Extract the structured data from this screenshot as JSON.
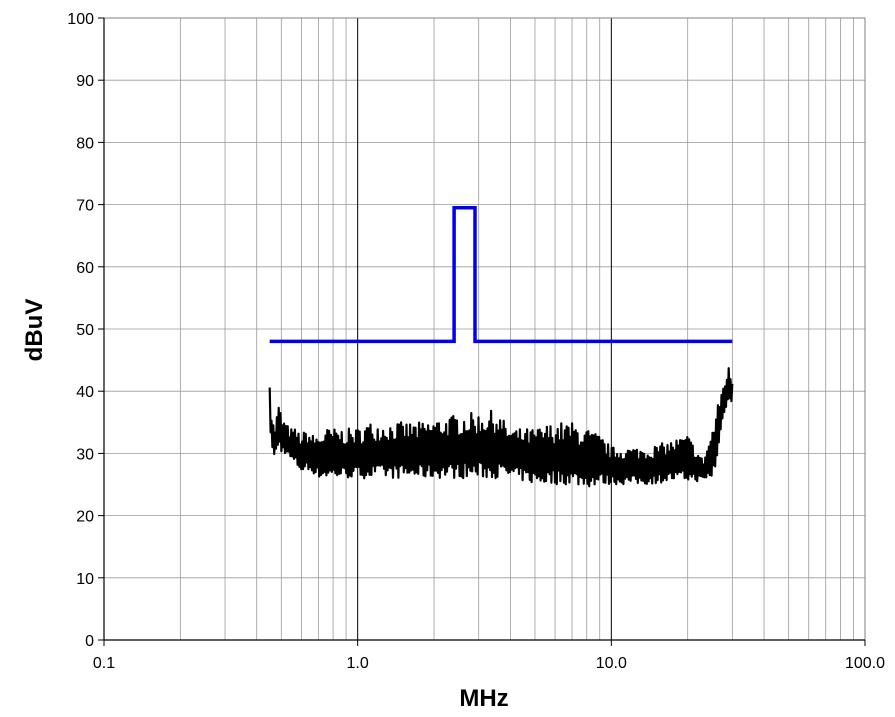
{
  "chart_data": {
    "type": "line",
    "title": "",
    "xlabel": "MHz",
    "ylabel": "dBuV",
    "xscale": "log",
    "xlim": [
      0.1,
      100
    ],
    "ylim": [
      0,
      100
    ],
    "x_ticks": [
      0.1,
      1,
      10,
      100
    ],
    "x_tick_labels": [
      "0.1",
      "1.0",
      "10.0",
      "100.0"
    ],
    "y_ticks": [
      0,
      10,
      20,
      30,
      40,
      50,
      60,
      70,
      80,
      90,
      100
    ],
    "y_tick_labels": [
      "0",
      "10",
      "20",
      "30",
      "40",
      "50",
      "60",
      "70",
      "80",
      "90",
      "100"
    ],
    "grid": true,
    "legend": "none",
    "series": [
      {
        "color": "#0000ee",
        "x": [
          0.45,
          2.4,
          2.4,
          2.9,
          2.9,
          30
        ],
        "y": [
          48,
          48,
          69.5,
          69.5,
          48,
          48
        ]
      },
      {
        "color": "#000000",
        "x": [
          0.45,
          0.47,
          0.49,
          0.5,
          0.52,
          0.54,
          0.57,
          0.6,
          0.63,
          0.66,
          0.7,
          0.75,
          0.8,
          0.85,
          0.9,
          1.0,
          1.1,
          1.2,
          1.4,
          1.6,
          1.8,
          2.0,
          2.3,
          2.6,
          3.0,
          3.5,
          4.0,
          4.5,
          5.0,
          6.0,
          7.0,
          8.0,
          9.0,
          10.0,
          12.0,
          14.0,
          17.0,
          20.0,
          23.0,
          25.0,
          26.0,
          27.0,
          28.0,
          29.0,
          30.0
        ],
        "y_max": [
          38,
          34,
          38.5,
          36,
          35,
          34,
          34,
          33,
          34,
          33,
          33,
          34,
          34,
          34,
          34,
          34,
          35,
          35,
          35,
          35,
          35,
          35.5,
          36,
          36.5,
          36.5,
          37,
          34,
          34,
          34,
          35,
          35,
          34,
          33,
          31,
          31,
          31,
          32,
          33,
          29,
          34,
          37,
          40,
          42,
          44,
          42
        ],
        "y_min": [
          33,
          29,
          31,
          30,
          30,
          29,
          28,
          27,
          27,
          27,
          26,
          26,
          26,
          26,
          26,
          26,
          26,
          26,
          26,
          26,
          26,
          26,
          26,
          26,
          26,
          26,
          26,
          25.5,
          25,
          25,
          25,
          24.5,
          25,
          25,
          25,
          25,
          25.5,
          25.5,
          25.5,
          26,
          28,
          33,
          37,
          38,
          38
        ]
      }
    ]
  }
}
